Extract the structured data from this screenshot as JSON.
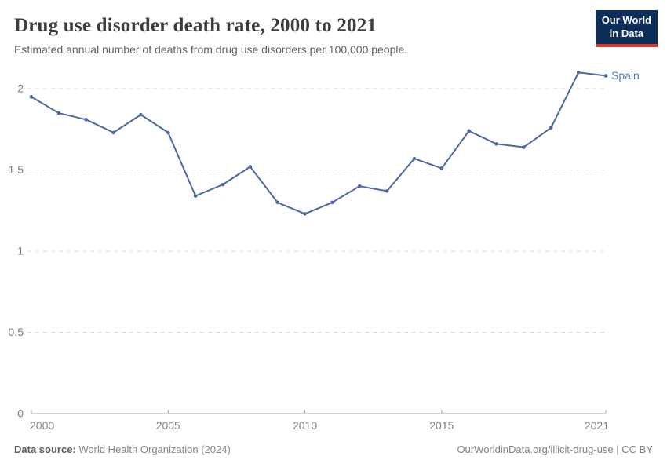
{
  "header": {
    "title": "Drug use disorder death rate, 2000 to 2021",
    "subtitle": "Estimated annual number of deaths from drug use disorders per 100,000 people.",
    "logo": {
      "line1": "Our World",
      "line2": "in Data"
    }
  },
  "chart_data": {
    "type": "line",
    "title": "Drug use disorder death rate, 2000 to 2021",
    "xlabel": "",
    "ylabel": "",
    "xlim": [
      2000,
      2021
    ],
    "ylim": [
      0,
      2.15
    ],
    "grid": "horizontal-dashed",
    "legend_position": "end-of-line-label",
    "x_ticks": [
      2000,
      2005,
      2010,
      2015,
      2021
    ],
    "y_ticks": [
      0,
      0.5,
      1,
      1.5,
      2
    ],
    "series": [
      {
        "name": "Spain",
        "color": "#4a69a5",
        "x": [
          2000,
          2001,
          2002,
          2003,
          2004,
          2005,
          2006,
          2007,
          2008,
          2009,
          2010,
          2011,
          2012,
          2013,
          2014,
          2015,
          2016,
          2017,
          2018,
          2019,
          2020,
          2021
        ],
        "values": [
          1.95,
          1.85,
          1.81,
          1.73,
          1.84,
          1.73,
          1.34,
          1.41,
          1.52,
          1.3,
          1.23,
          1.3,
          1.4,
          1.37,
          1.57,
          1.51,
          1.74,
          1.66,
          1.64,
          1.76,
          2.1,
          2.08
        ]
      }
    ]
  },
  "footer": {
    "source_label": "Data source:",
    "source_text": " World Health Organization (2024)",
    "credit": "OurWorldinData.org/illicit-drug-use | CC BY"
  },
  "colors": {
    "line": "#4a69a5",
    "entity_label": "#577eab",
    "grid": "#dcdcdc",
    "axis": "#a8a8a8",
    "tick_text": "#7f7f7f",
    "logo_bg": "#0d2e5a",
    "logo_accent": "#d8362f",
    "title_text": "#3d3d3d",
    "subtitle_text": "#636363"
  }
}
